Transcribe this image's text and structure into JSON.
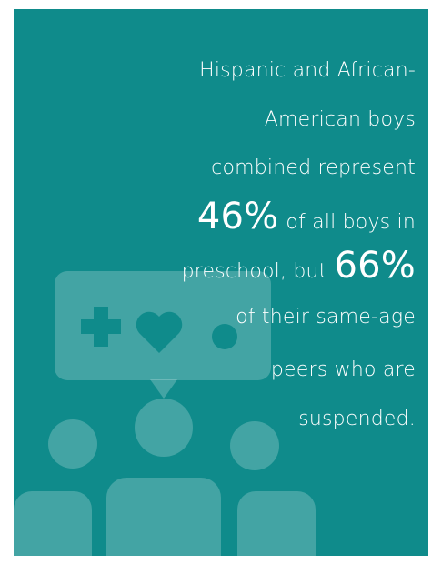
{
  "lines": [
    "Hispanic and African-",
    "American boys",
    "combined represent"
  ],
  "highlight_1": {
    "number": "46%",
    "rest": "of all boys in"
  },
  "highlight_2": {
    "before": "preschool, but",
    "number": "66%"
  },
  "closing": [
    "of their same-age",
    "peers who are",
    "suspended."
  ]
}
